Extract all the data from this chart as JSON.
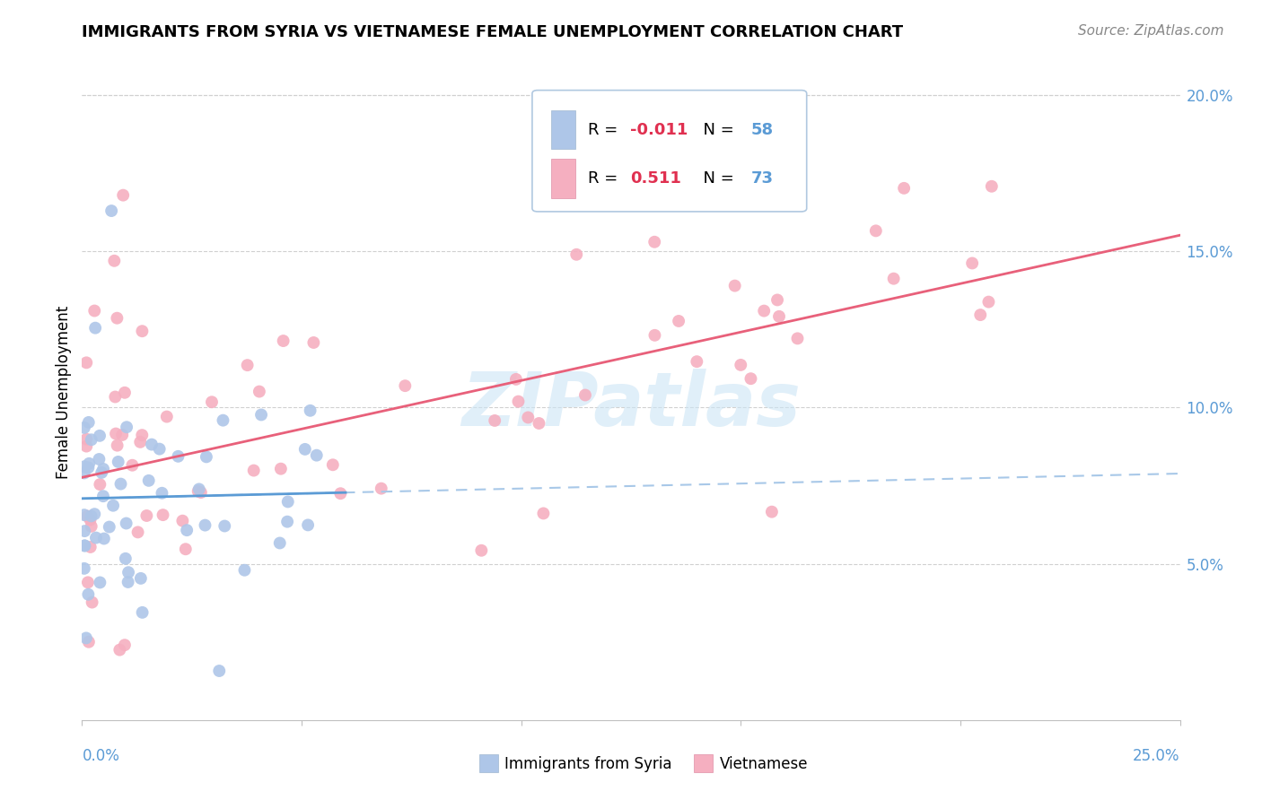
{
  "title": "IMMIGRANTS FROM SYRIA VS VIETNAMESE FEMALE UNEMPLOYMENT CORRELATION CHART",
  "source": "Source: ZipAtlas.com",
  "ylabel": "Female Unemployment",
  "yticks": [
    "5.0%",
    "10.0%",
    "15.0%",
    "20.0%"
  ],
  "ytick_values": [
    0.05,
    0.1,
    0.15,
    0.2
  ],
  "xlim": [
    0.0,
    0.25
  ],
  "ylim": [
    0.0,
    0.21
  ],
  "watermark": "ZIPatlas",
  "color_syria": "#aec6e8",
  "color_vietnam": "#f5afc0",
  "color_syria_line": "#5b9bd5",
  "color_syria_dashed": "#a8c8e8",
  "color_vietnam_line": "#e8607a",
  "title_fontsize": 13,
  "source_fontsize": 11,
  "axis_label_fontsize": 12,
  "tick_label_fontsize": 12,
  "legend_fontsize": 13,
  "watermark_fontsize": 60
}
